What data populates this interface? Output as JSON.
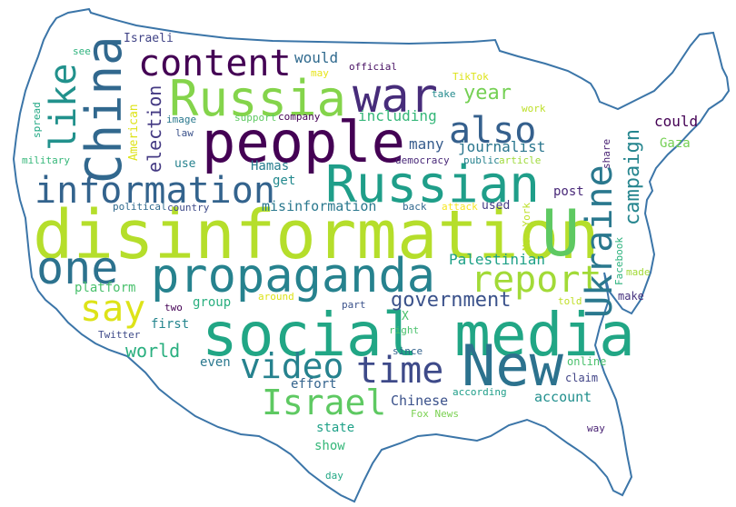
{
  "wordcloud": {
    "shape": "usa-map-outline",
    "outline_color": "#3b75a8",
    "words": [
      {
        "text": "disinformation",
        "color": "#b5de2b"
      },
      {
        "text": "social media",
        "color": "#21a685"
      },
      {
        "text": "people",
        "color": "#440154"
      },
      {
        "text": "Russia",
        "color": "#84d44b"
      },
      {
        "text": "China",
        "color": "#31688e"
      },
      {
        "text": "war",
        "color": "#472c7a"
      },
      {
        "text": "Russian",
        "color": "#1f9e89"
      },
      {
        "text": "propaganda",
        "color": "#26828e"
      },
      {
        "text": "New",
        "color": "#2c728e"
      },
      {
        "text": "U",
        "color": "#5ec962"
      },
      {
        "text": "one",
        "color": "#2c728e"
      },
      {
        "text": "information",
        "color": "#33638d"
      },
      {
        "text": "content",
        "color": "#440154"
      },
      {
        "text": "also",
        "color": "#35608d"
      },
      {
        "text": "like",
        "color": "#21918c"
      },
      {
        "text": "say",
        "color": "#dde318"
      },
      {
        "text": "report",
        "color": "#a2da37"
      },
      {
        "text": "Ukraine",
        "color": "#2a788e"
      },
      {
        "text": "time",
        "color": "#3e4a89"
      },
      {
        "text": "video",
        "color": "#26828e"
      },
      {
        "text": "Israel",
        "color": "#5ec962"
      },
      {
        "text": "government",
        "color": "#3b528b"
      },
      {
        "text": "year",
        "color": "#75d054"
      },
      {
        "text": "campaign",
        "color": "#25858e"
      },
      {
        "text": "election",
        "color": "#443a83"
      },
      {
        "text": "world",
        "color": "#29af7f"
      },
      {
        "text": "Palestinian",
        "color": "#1fa188"
      },
      {
        "text": "journalist",
        "color": "#2a768e"
      },
      {
        "text": "would",
        "color": "#306a8e"
      },
      {
        "text": "including",
        "color": "#35b779"
      },
      {
        "text": "many",
        "color": "#365c8d"
      },
      {
        "text": "could",
        "color": "#440154"
      },
      {
        "text": "Gaza",
        "color": "#75d054"
      },
      {
        "text": "post",
        "color": "#482878"
      },
      {
        "text": "Chinese",
        "color": "#3b528b"
      },
      {
        "text": "account",
        "color": "#218f8d"
      },
      {
        "text": "misinformation",
        "color": "#2a788e"
      },
      {
        "text": "platform",
        "color": "#4ac16d"
      },
      {
        "text": "group",
        "color": "#29af7f"
      },
      {
        "text": "first",
        "color": "#25858e"
      },
      {
        "text": "Hamas",
        "color": "#287d8e"
      },
      {
        "text": "get",
        "color": "#23898e"
      },
      {
        "text": "effort",
        "color": "#33638d"
      },
      {
        "text": "even",
        "color": "#2a788e"
      },
      {
        "text": "state",
        "color": "#1fa188"
      },
      {
        "text": "show",
        "color": "#35b779"
      },
      {
        "text": "American",
        "color": "#dde318"
      },
      {
        "text": "Israeli",
        "color": "#414487"
      },
      {
        "text": "use",
        "color": "#26828e"
      },
      {
        "text": "used",
        "color": "#443a83"
      },
      {
        "text": "make",
        "color": "#46327e"
      },
      {
        "text": "X",
        "color": "#4ac16d"
      },
      {
        "text": "online",
        "color": "#4ac16d"
      },
      {
        "text": "claim",
        "color": "#414487"
      },
      {
        "text": "according",
        "color": "#1f9e89"
      },
      {
        "text": "Fox News",
        "color": "#7ad151"
      },
      {
        "text": "way",
        "color": "#482173"
      },
      {
        "text": "day",
        "color": "#22a884"
      },
      {
        "text": "Twitter",
        "color": "#3e4a89"
      },
      {
        "text": "two",
        "color": "#440154"
      },
      {
        "text": "since",
        "color": "#33638d"
      },
      {
        "text": "right",
        "color": "#4ac16d"
      },
      {
        "text": "part",
        "color": "#3b528b"
      },
      {
        "text": "around",
        "color": "#dde318"
      },
      {
        "text": "told",
        "color": "#c0df25"
      },
      {
        "text": "made",
        "color": "#a2da37"
      },
      {
        "text": "Facebook",
        "color": "#2db27d"
      },
      {
        "text": "New York",
        "color": "#bddf26"
      },
      {
        "text": "attack",
        "color": "#f6e620"
      },
      {
        "text": "back",
        "color": "#31688e"
      },
      {
        "text": "political",
        "color": "#306a8e"
      },
      {
        "text": "country",
        "color": "#3e4a89"
      },
      {
        "text": "democracy",
        "color": "#482878"
      },
      {
        "text": "public",
        "color": "#26828e"
      },
      {
        "text": "article",
        "color": "#9fda3a"
      },
      {
        "text": "share",
        "color": "#482173"
      },
      {
        "text": "work",
        "color": "#bddf26"
      },
      {
        "text": "TikTok",
        "color": "#dde318"
      },
      {
        "text": "take",
        "color": "#238a8d"
      },
      {
        "text": "company",
        "color": "#440154"
      },
      {
        "text": "support",
        "color": "#5ec962"
      },
      {
        "text": "image",
        "color": "#2a788e"
      },
      {
        "text": "law",
        "color": "#3b528b"
      },
      {
        "text": "official",
        "color": "#471063"
      },
      {
        "text": "may",
        "color": "#e7e419"
      },
      {
        "text": "see",
        "color": "#2db27d"
      },
      {
        "text": "spread",
        "color": "#22a884"
      },
      {
        "text": "military",
        "color": "#35b779"
      }
    ]
  }
}
